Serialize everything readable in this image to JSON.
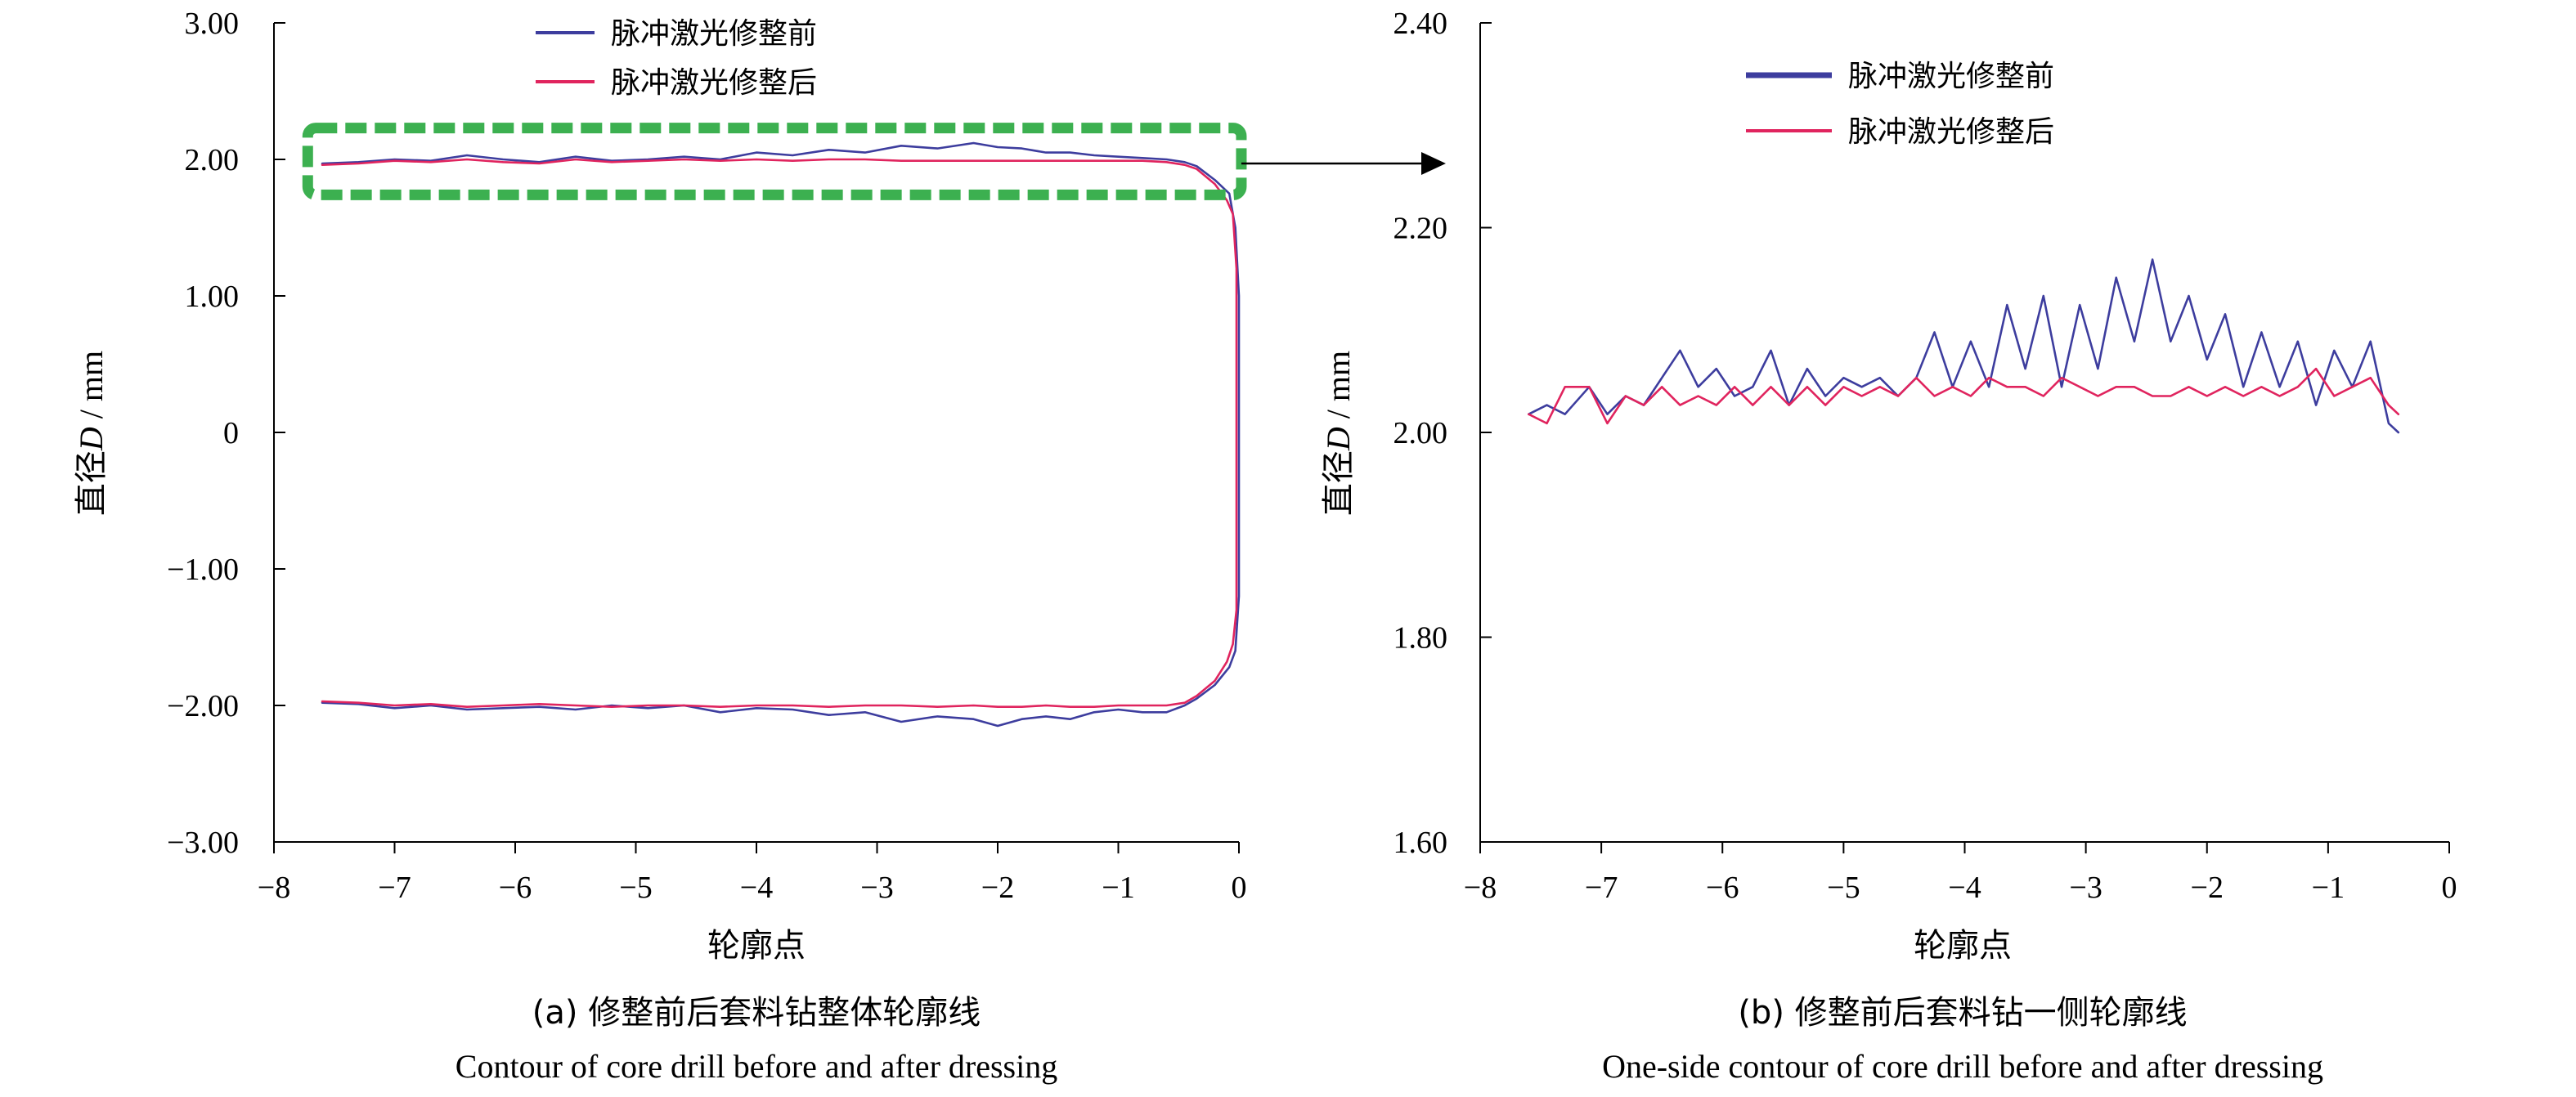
{
  "chart_data": [
    {
      "type": "line",
      "ylabel_prefix": "直径",
      "ylabel_var": "D",
      "ylabel_unit": "/ mm",
      "xlabel": "轮廓点",
      "xlim": [
        -8,
        0
      ],
      "ylim": [
        -3,
        3
      ],
      "x_ticks": [
        "−8",
        "−7",
        "−6",
        "−5",
        "−4",
        "−3",
        "−2",
        "−1",
        "0"
      ],
      "y_ticks": [
        "3.00",
        "2.00",
        "1.00",
        "0",
        "−1.00",
        "−2.00",
        "−3.00"
      ],
      "caption_zh": "(a) 修整前后套料钻整体轮廓线",
      "caption_en": "Contour of core drill before and after dressing",
      "legend_position": "top-center",
      "series": [
        {
          "name": "脉冲激光修整前",
          "color": "#3d3d9e",
          "x": [
            -7.6,
            -7.3,
            -7.0,
            -6.7,
            -6.4,
            -6.1,
            -5.8,
            -5.5,
            -5.2,
            -4.9,
            -4.6,
            -4.3,
            -4.0,
            -3.7,
            -3.4,
            -3.1,
            -2.8,
            -2.5,
            -2.2,
            -2.0,
            -1.8,
            -1.6,
            -1.4,
            -1.2,
            -1.0,
            -0.8,
            -0.6,
            -0.45,
            -0.35,
            -0.2,
            -0.08,
            -0.03,
            0.0,
            0.0,
            0.0,
            -0.03,
            -0.08,
            -0.2,
            -0.35,
            -0.45,
            -0.6,
            -0.8,
            -1.0,
            -1.2,
            -1.4,
            -1.6,
            -1.8,
            -2.0,
            -2.2,
            -2.5,
            -2.8,
            -3.1,
            -3.4,
            -3.7,
            -4.0,
            -4.3,
            -4.6,
            -4.9,
            -5.2,
            -5.5,
            -5.8,
            -6.1,
            -6.4,
            -6.7,
            -7.0,
            -7.3,
            -7.6
          ],
          "y": [
            1.97,
            1.98,
            2.0,
            1.99,
            2.03,
            2.0,
            1.98,
            2.02,
            1.99,
            2.0,
            2.02,
            2.0,
            2.05,
            2.03,
            2.07,
            2.05,
            2.1,
            2.08,
            2.12,
            2.09,
            2.08,
            2.05,
            2.05,
            2.03,
            2.02,
            2.01,
            2.0,
            1.98,
            1.95,
            1.85,
            1.75,
            1.5,
            1.0,
            0.0,
            -1.2,
            -1.6,
            -1.72,
            -1.85,
            -1.95,
            -2.0,
            -2.05,
            -2.05,
            -2.03,
            -2.05,
            -2.1,
            -2.08,
            -2.1,
            -2.15,
            -2.1,
            -2.08,
            -2.12,
            -2.05,
            -2.07,
            -2.03,
            -2.02,
            -2.05,
            -2.0,
            -2.02,
            -2.0,
            -2.03,
            -2.01,
            -2.02,
            -2.03,
            -2.0,
            -2.02,
            -1.99,
            -1.98
          ]
        },
        {
          "name": "脉冲激光修整后",
          "color": "#e0245e",
          "x": [
            -7.6,
            -7.3,
            -7.0,
            -6.7,
            -6.4,
            -6.1,
            -5.8,
            -5.5,
            -5.2,
            -4.9,
            -4.6,
            -4.3,
            -4.0,
            -3.7,
            -3.4,
            -3.1,
            -2.8,
            -2.5,
            -2.2,
            -2.0,
            -1.8,
            -1.6,
            -1.4,
            -1.2,
            -1.0,
            -0.8,
            -0.6,
            -0.45,
            -0.35,
            -0.2,
            -0.1,
            -0.05,
            -0.02,
            -0.02,
            -0.02,
            -0.05,
            -0.1,
            -0.2,
            -0.35,
            -0.45,
            -0.6,
            -0.8,
            -1.0,
            -1.2,
            -1.4,
            -1.6,
            -1.8,
            -2.0,
            -2.2,
            -2.5,
            -2.8,
            -3.1,
            -3.4,
            -3.7,
            -4.0,
            -4.3,
            -4.6,
            -4.9,
            -5.2,
            -5.5,
            -5.8,
            -6.1,
            -6.4,
            -6.7,
            -7.0,
            -7.3,
            -7.6
          ],
          "y": [
            1.96,
            1.97,
            1.99,
            1.98,
            2.0,
            1.98,
            1.97,
            2.0,
            1.98,
            1.99,
            2.0,
            1.99,
            2.0,
            1.99,
            2.0,
            2.0,
            1.99,
            1.99,
            1.99,
            1.99,
            1.99,
            1.99,
            1.99,
            1.99,
            1.99,
            1.99,
            1.98,
            1.96,
            1.93,
            1.82,
            1.7,
            1.6,
            1.2,
            0.0,
            -1.3,
            -1.55,
            -1.68,
            -1.82,
            -1.93,
            -1.98,
            -2.0,
            -2.0,
            -2.0,
            -2.01,
            -2.01,
            -2.0,
            -2.01,
            -2.01,
            -2.0,
            -2.01,
            -2.0,
            -2.0,
            -2.01,
            -2.0,
            -2.0,
            -2.01,
            -2.0,
            -2.0,
            -2.01,
            -2.0,
            -1.99,
            -2.0,
            -2.01,
            -1.99,
            -2.0,
            -1.98,
            -1.97
          ]
        }
      ],
      "annotation": "dashed green box around upper contour, arrow pointing to panel (b)",
      "annotation_color": "#3cb050"
    },
    {
      "type": "line",
      "ylabel_prefix": "直径",
      "ylabel_var": "D",
      "ylabel_unit": "/ mm",
      "xlabel": "轮廓点",
      "xlim": [
        -8,
        0
      ],
      "ylim": [
        1.5,
        2.4
      ],
      "x_ticks": [
        "−8",
        "−7",
        "−6",
        "−5",
        "−4",
        "−3",
        "−2",
        "−1",
        "0"
      ],
      "y_ticks": [
        "2.40",
        "2.20",
        "2.00",
        "1.80",
        "1.60"
      ],
      "caption_zh": "(b) 修整前后套料钻一侧轮廓线",
      "caption_en": "One-side contour of core drill before and after dressing",
      "legend_position": "top-center",
      "series": [
        {
          "name": "脉冲激光修整前",
          "color": "#3d3d9e",
          "x": [
            -7.6,
            -7.45,
            -7.3,
            -7.1,
            -6.95,
            -6.8,
            -6.65,
            -6.5,
            -6.35,
            -6.2,
            -6.05,
            -5.9,
            -5.75,
            -5.6,
            -5.45,
            -5.3,
            -5.15,
            -5.0,
            -4.85,
            -4.7,
            -4.55,
            -4.4,
            -4.25,
            -4.1,
            -3.95,
            -3.8,
            -3.65,
            -3.5,
            -3.35,
            -3.2,
            -3.05,
            -2.9,
            -2.75,
            -2.6,
            -2.45,
            -2.3,
            -2.15,
            -2.0,
            -1.85,
            -1.7,
            -1.55,
            -1.4,
            -1.25,
            -1.1,
            -0.95,
            -0.8,
            -0.65,
            -0.5,
            -0.42
          ],
          "y": [
            1.97,
            1.98,
            1.97,
            2.0,
            1.97,
            1.99,
            1.98,
            2.01,
            2.04,
            2.0,
            2.02,
            1.99,
            2.0,
            2.04,
            1.98,
            2.02,
            1.99,
            2.01,
            2.0,
            2.01,
            1.99,
            2.01,
            2.06,
            2.0,
            2.05,
            2.0,
            2.09,
            2.02,
            2.1,
            2.0,
            2.09,
            2.02,
            2.12,
            2.05,
            2.14,
            2.05,
            2.1,
            2.03,
            2.08,
            2.0,
            2.06,
            2.0,
            2.05,
            1.98,
            2.04,
            2.0,
            2.05,
            1.96,
            1.95
          ]
        },
        {
          "name": "脉冲激光修整后",
          "color": "#e0245e",
          "x": [
            -7.6,
            -7.45,
            -7.3,
            -7.1,
            -6.95,
            -6.8,
            -6.65,
            -6.5,
            -6.35,
            -6.2,
            -6.05,
            -5.9,
            -5.75,
            -5.6,
            -5.45,
            -5.3,
            -5.15,
            -5.0,
            -4.85,
            -4.7,
            -4.55,
            -4.4,
            -4.25,
            -4.1,
            -3.95,
            -3.8,
            -3.65,
            -3.5,
            -3.35,
            -3.2,
            -3.05,
            -2.9,
            -2.75,
            -2.6,
            -2.45,
            -2.3,
            -2.15,
            -2.0,
            -1.85,
            -1.7,
            -1.55,
            -1.4,
            -1.25,
            -1.1,
            -0.95,
            -0.8,
            -0.65,
            -0.5,
            -0.42
          ],
          "y": [
            1.97,
            1.96,
            2.0,
            2.0,
            1.96,
            1.99,
            1.98,
            2.0,
            1.98,
            1.99,
            1.98,
            2.0,
            1.98,
            2.0,
            1.98,
            2.0,
            1.98,
            2.0,
            1.99,
            2.0,
            1.99,
            2.01,
            1.99,
            2.0,
            1.99,
            2.01,
            2.0,
            2.0,
            1.99,
            2.01,
            2.0,
            1.99,
            2.0,
            2.0,
            1.99,
            1.99,
            2.0,
            1.99,
            2.0,
            1.99,
            2.0,
            1.99,
            2.0,
            2.02,
            1.99,
            2.0,
            2.01,
            1.98,
            1.97
          ]
        }
      ]
    }
  ]
}
